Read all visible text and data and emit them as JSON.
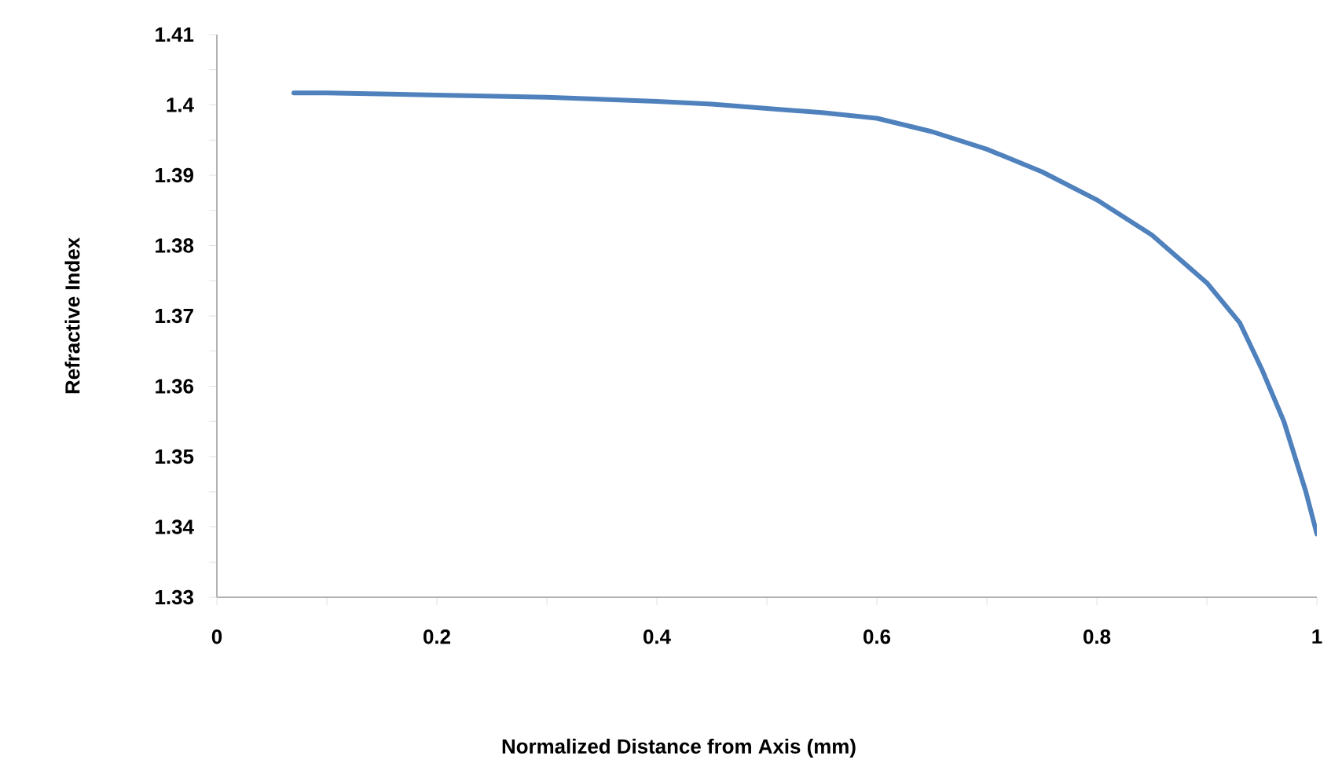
{
  "chart_data": {
    "type": "line",
    "xlabel": "Normalized Distance from Axis (mm)",
    "ylabel": "Refractive Index",
    "series": [
      {
        "color": "#4f81bd",
        "x": [
          0.07,
          0.1,
          0.2,
          0.3,
          0.4,
          0.45,
          0.5,
          0.55,
          0.6,
          0.65,
          0.7,
          0.75,
          0.8,
          0.85,
          0.9,
          0.93,
          0.95,
          0.97,
          0.99,
          1.0
        ],
        "values": [
          1.4017,
          1.4017,
          1.4014,
          1.4011,
          1.4005,
          1.4001,
          1.3995,
          1.3989,
          1.3981,
          1.3962,
          1.3937,
          1.3905,
          1.3865,
          1.3815,
          1.3747,
          1.369,
          1.3624,
          1.355,
          1.345,
          1.339
        ]
      }
    ],
    "xlim": [
      0,
      1
    ],
    "ylim": [
      1.33,
      1.41
    ],
    "xticks": [
      0,
      0.2,
      0.4,
      0.6,
      0.8,
      1
    ],
    "yticks": [
      1.33,
      1.34,
      1.35,
      1.36,
      1.37,
      1.38,
      1.39,
      1.4,
      1.41
    ],
    "grid": false,
    "marker": "none",
    "line_style": "solid"
  }
}
